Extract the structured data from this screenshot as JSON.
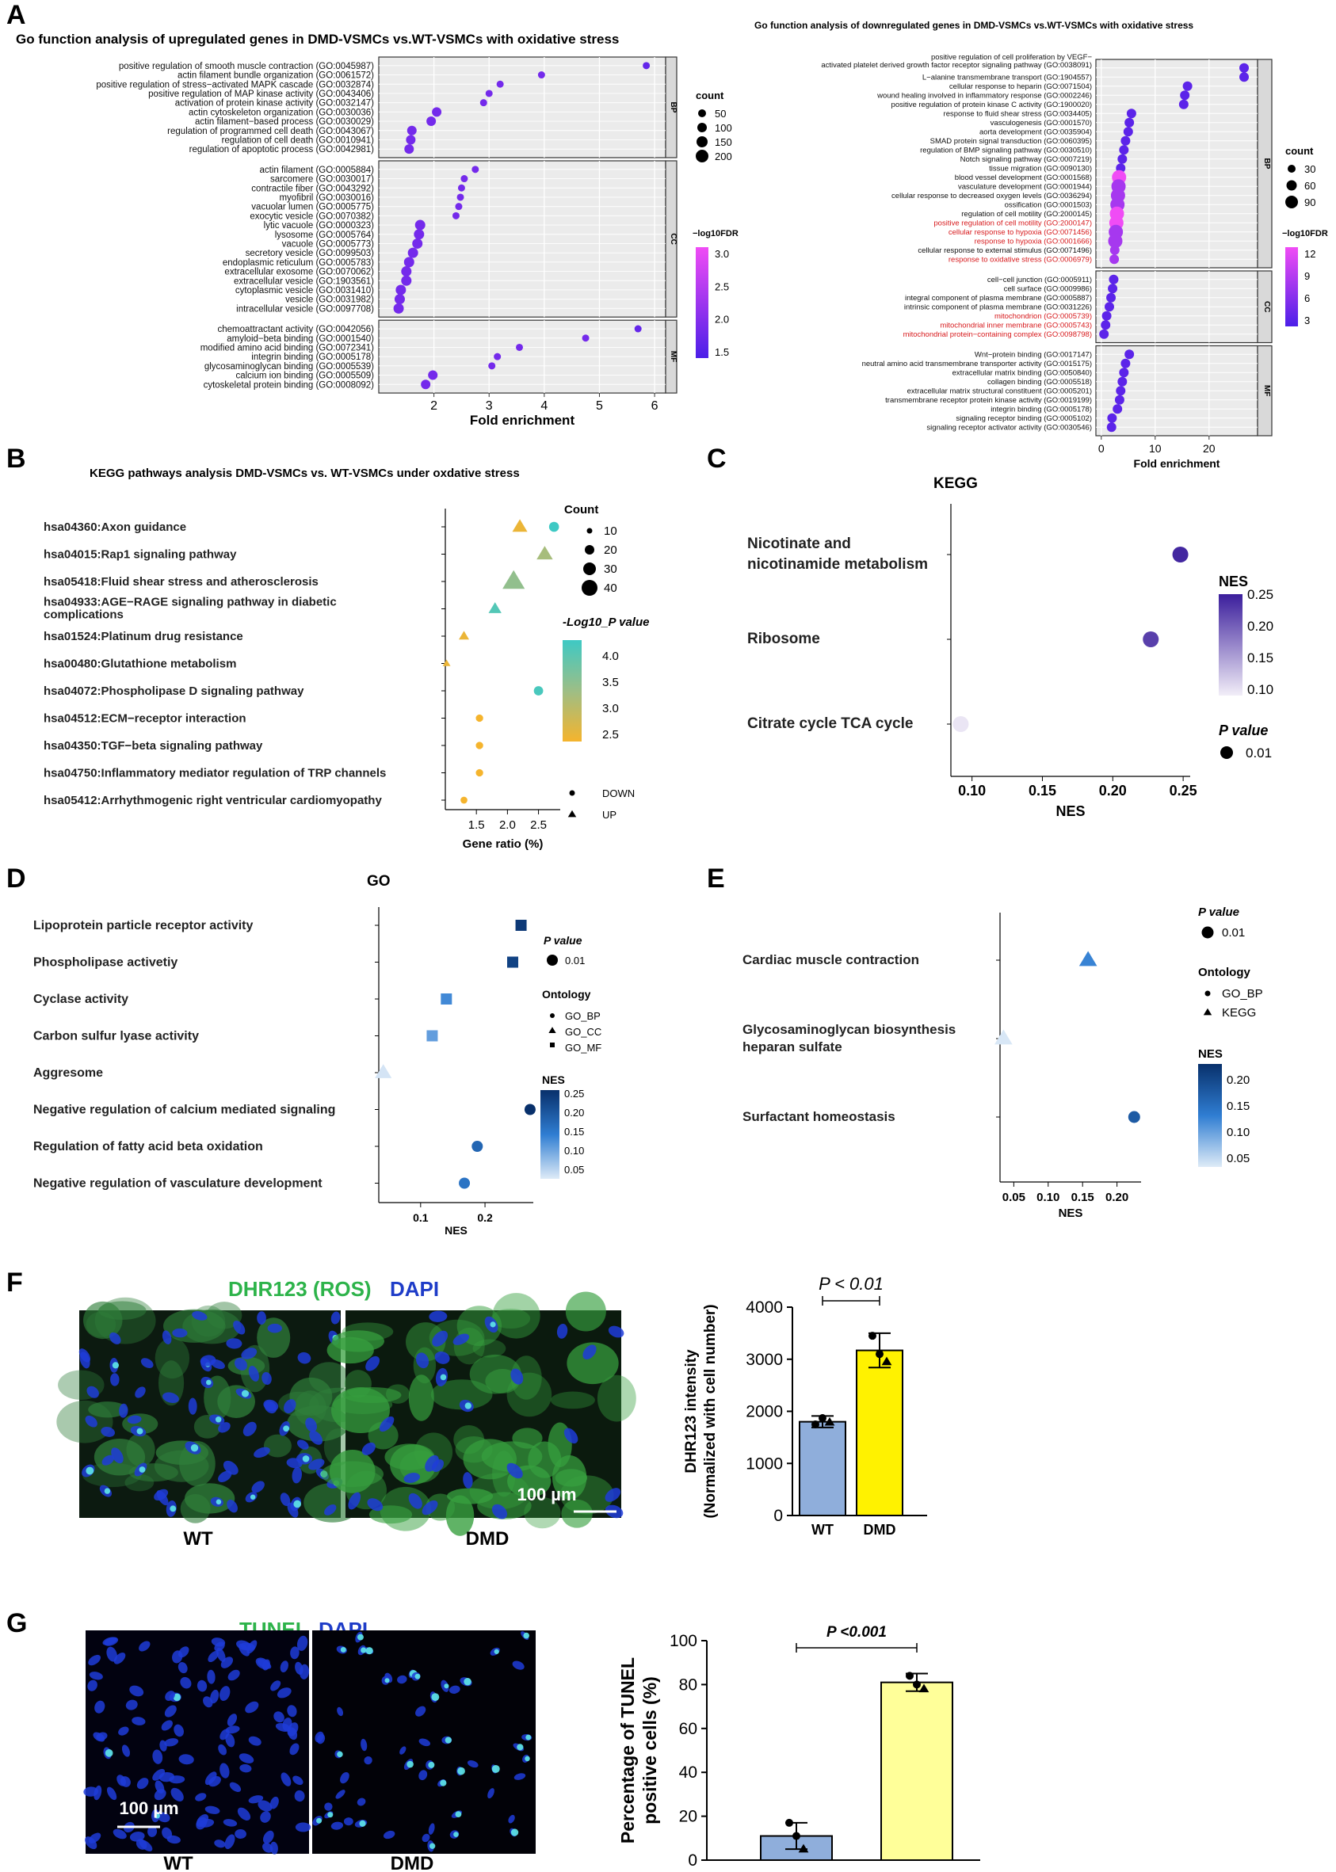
{
  "panels": {
    "A": "A",
    "B": "B",
    "C": "C",
    "D": "D",
    "E": "E",
    "F": "F",
    "G": "G"
  },
  "chart_data": [
    {
      "id": "A_up",
      "type": "scatter",
      "title": "Go function analysis of upregulated genes in DMD-VSMCs vs.WT-VSMCs with oxidative stress",
      "xlabel": "Fold enrichment",
      "xlim": [
        1,
        6.2
      ],
      "xticks": [
        2,
        3,
        4,
        5,
        6
      ],
      "size_legend_title": "count",
      "size_legend": [
        50,
        100,
        150,
        200
      ],
      "color_legend_title": "−log10FDR",
      "color_legend_ticks": [
        "3.0",
        "2.5",
        "2.0",
        "1.5"
      ],
      "groups": [
        {
          "name": "BP",
          "terms": [
            {
              "label": "positive regulation of smooth muscle contraction (GO:0045987)",
              "x": 5.85
            },
            {
              "label": "actin filament bundle organization (GO:0061572)",
              "x": 3.95
            },
            {
              "label": "positive regulation of stress−activated MAPK cascade (GO:0032874)",
              "x": 3.2
            },
            {
              "label": "positive regulation of MAP kinase activity (GO:0043406)",
              "x": 3.0
            },
            {
              "label": "activation of protein kinase activity (GO:0032147)",
              "x": 2.9
            },
            {
              "label": "actin cytoskeleton organization (GO:0030036)",
              "x": 2.05
            },
            {
              "label": "actin filament−based process (GO:0030029)",
              "x": 1.95
            },
            {
              "label": "regulation of programmed cell death (GO:0043067)",
              "x": 1.6
            },
            {
              "label": "regulation of cell death (GO:0010941)",
              "x": 1.58
            },
            {
              "label": "regulation of apoptotic process (GO:0042981)",
              "x": 1.55
            }
          ]
        },
        {
          "name": "CC",
          "terms": [
            {
              "label": "actin filament (GO:0005884)",
              "x": 2.75
            },
            {
              "label": "sarcomere (GO:0030017)",
              "x": 2.55
            },
            {
              "label": "contractile fiber (GO:0043292)",
              "x": 2.5
            },
            {
              "label": "myofibril (GO:0030016)",
              "x": 2.48
            },
            {
              "label": "vacuolar lumen (GO:0005775)",
              "x": 2.45
            },
            {
              "label": "exocytic vesicle (GO:0070382)",
              "x": 2.4
            },
            {
              "label": "lytic vacuole (GO:0000323)",
              "x": 1.75
            },
            {
              "label": "lysosome (GO:0005764)",
              "x": 1.73
            },
            {
              "label": "vacuole (GO:0005773)",
              "x": 1.7
            },
            {
              "label": "secretory vesicle (GO:0099503)",
              "x": 1.62
            },
            {
              "label": "endoplasmic reticulum (GO:0005783)",
              "x": 1.55
            },
            {
              "label": "extracellular exosome (GO:0070062)",
              "x": 1.5
            },
            {
              "label": "extracellular vesicle (GO:1903561)",
              "x": 1.5
            },
            {
              "label": "cytoplasmic vesicle (GO:0031410)",
              "x": 1.4
            },
            {
              "label": "vesicle (GO:0031982)",
              "x": 1.38
            },
            {
              "label": "intracellular vesicle (GO:0097708)",
              "x": 1.36
            }
          ]
        },
        {
          "name": "MF",
          "terms": [
            {
              "label": "chemoattractant activity (GO:0042056)",
              "x": 5.7
            },
            {
              "label": "amyloid−beta binding (GO:0001540)",
              "x": 4.75
            },
            {
              "label": "modified amino acid binding (GO:0072341)",
              "x": 3.55
            },
            {
              "label": "integrin binding (GO:0005178)",
              "x": 3.15
            },
            {
              "label": "glycosaminoglycan binding (GO:0005539)",
              "x": 3.05
            },
            {
              "label": "calcium ion binding (GO:0005509)",
              "x": 1.98
            },
            {
              "label": "cytoskeletal protein binding (GO:0008092)",
              "x": 1.85
            }
          ]
        }
      ]
    },
    {
      "id": "A_down",
      "type": "scatter",
      "title": "Go function analysis of downregulated genes in DMD-VSMCs vs.WT-VSMCs with oxidative stress",
      "xlabel": "Fold enrichment",
      "xlim": [
        -1,
        29
      ],
      "xticks": [
        0,
        10,
        20
      ],
      "size_legend_title": "count",
      "size_legend": [
        30,
        60,
        90
      ],
      "color_legend_title": "−log10FDR",
      "color_legend_ticks": [
        "12",
        "9",
        "6",
        "3"
      ],
      "groups": [
        {
          "name": "BP",
          "terms": [
            {
              "label": "positive regulation of cell proliferation by VEGF−activated platelet derived growth factor receptor signaling pathway (GO:0038091)",
              "x": 26.5
            },
            {
              "label": "L−alanine transmembrane transport (GO:1904557)",
              "x": 26.5
            },
            {
              "label": "cellular response to heparin (GO:0071504)",
              "x": 16.0
            },
            {
              "label": "wound healing involved in inflammatory response (GO:0002246)",
              "x": 15.5
            },
            {
              "label": "positive regulation of protein kinase C activity (GO:1900020)",
              "x": 15.3
            },
            {
              "label": "response to fluid shear stress (GO:0034405)",
              "x": 5.6
            },
            {
              "label": "vasculogenesis (GO:0001570)",
              "x": 5.2
            },
            {
              "label": "aorta development (GO:0035904)",
              "x": 5.0
            },
            {
              "label": "SMAD protein signal transduction (GO:0060395)",
              "x": 4.5
            },
            {
              "label": "regulation of BMP signaling pathway (GO:0030510)",
              "x": 4.2
            },
            {
              "label": "Notch signaling pathway (GO:0007219)",
              "x": 3.9
            },
            {
              "label": "tissue migration (GO:0090130)",
              "x": 3.6
            },
            {
              "label": "blood vessel development (GO:0001568)",
              "x": 3.3
            },
            {
              "label": "vasculature development (GO:0001944)",
              "x": 3.2
            },
            {
              "label": "cellular response to decreased oxygen levels (GO:0036294)",
              "x": 3.1
            },
            {
              "label": "ossification (GO:0001503)",
              "x": 3.0
            },
            {
              "label": "regulation of cell motility (GO:2000145)",
              "x": 2.9
            },
            {
              "label": "positive regulation of cell motility (GO:2000147)",
              "x": 2.8
            },
            {
              "label": "cellular response to hypoxia (GO:0071456)",
              "x": 2.7
            },
            {
              "label": "response to hypoxia (GO:0001666)",
              "x": 2.6
            },
            {
              "label": "cellular response to external stimulus (GO:0071496)",
              "x": 2.5
            },
            {
              "label": "response to oxidative stress (GO:0006979)",
              "x": 2.4
            }
          ]
        },
        {
          "name": "CC",
          "terms": [
            {
              "label": "cell−cell junction (GO:0005911)",
              "x": 2.3
            },
            {
              "label": "cell surface (GO:0009986)",
              "x": 2.1
            },
            {
              "label": "integral component of plasma membrane (GO:0005887)",
              "x": 1.8
            },
            {
              "label": "intrinsic component of plasma membrane (GO:0031226)",
              "x": 1.5
            },
            {
              "label": "mitochondrion (GO:0005739)",
              "x": 1.0
            },
            {
              "label": "mitochondrial inner membrane (GO:0005743)",
              "x": 0.8
            },
            {
              "label": "mitochondrial protein−containing complex (GO:0098798)",
              "x": 0.5
            }
          ]
        },
        {
          "name": "MF",
          "terms": [
            {
              "label": "Wnt−protein binding (GO:0017147)",
              "x": 5.2
            },
            {
              "label": "neutral amino acid transmembrane transporter activity (GO:0015175)",
              "x": 4.5
            },
            {
              "label": "extracellular matrix binding (GO:0050840)",
              "x": 4.2
            },
            {
              "label": "collagen binding (GO:0005518)",
              "x": 3.9
            },
            {
              "label": "extracellular matrix structural constituent (GO:0005201)",
              "x": 3.6
            },
            {
              "label": "transmembrane receptor protein kinase activity (GO:0019199)",
              "x": 3.4
            },
            {
              "label": "integrin binding (GO:0005178)",
              "x": 3.0
            },
            {
              "label": "signaling receptor binding (GO:0005102)",
              "x": 2.0
            },
            {
              "label": "signaling receptor activator activity (GO:0030546)",
              "x": 1.9
            }
          ]
        }
      ]
    },
    {
      "id": "B",
      "type": "scatter",
      "title": "KEGG pathways analysis DMD-VSMCs vs. WT-VSMCs under oxdative stress",
      "xlabel": "Gene ratio (%)",
      "xlim": [
        1.0,
        2.85
      ],
      "xticks": [
        1.5,
        2.0,
        2.5
      ],
      "size_legend_title": "Count",
      "size_legend": [
        10,
        20,
        30,
        40
      ],
      "color_legend_title": "-Log10_P value",
      "color_legend_ticks": [
        "4.0",
        "3.5",
        "3.0",
        "2.5"
      ],
      "shape_legend": [
        "DOWN",
        "UP"
      ],
      "points": [
        {
          "label": "hsa04360:Axon guidance",
          "x": 2.2,
          "count": 15,
          "logp": 2.4,
          "dir": "UP"
        },
        {
          "label": "",
          "x": 2.75,
          "count": 12,
          "logp": 4.1,
          "dir": "DOWN"
        },
        {
          "label": "hsa04015:Rap1 signaling pathway",
          "x": 2.6,
          "count": 18,
          "logp": 3.1,
          "dir": "UP"
        },
        {
          "label": "hsa05418:Fluid shear stress and atherosclerosis",
          "x": 2.1,
          "count": 40,
          "logp": 3.3,
          "dir": "UP"
        },
        {
          "label": "hsa04933:AGE−RAGE signaling pathway in diabetic complications",
          "x": 1.8,
          "count": 10,
          "logp": 3.9,
          "dir": "UP"
        },
        {
          "label": "hsa01524:Platinum drug resistance",
          "x": 1.3,
          "count": 5,
          "logp": 2.4,
          "dir": "UP"
        },
        {
          "label": "hsa00480:Glutathione metabolism",
          "x": 1.02,
          "count": 2,
          "logp": 2.4,
          "dir": "UP"
        },
        {
          "label": "hsa04072:Phospholipase D signaling pathway",
          "x": 2.5,
          "count": 10,
          "logp": 4.0,
          "dir": "DOWN"
        },
        {
          "label": "hsa04512:ECM−receptor interaction",
          "x": 1.55,
          "count": 5,
          "logp": 2.3,
          "dir": "DOWN"
        },
        {
          "label": "hsa04350:TGF−beta signaling pathway",
          "x": 1.55,
          "count": 5,
          "logp": 2.3,
          "dir": "DOWN"
        },
        {
          "label": "hsa04750:Inflammatory mediator regulation of TRP channels",
          "x": 1.55,
          "count": 5,
          "logp": 2.3,
          "dir": "DOWN"
        },
        {
          "label": "hsa05412:Arrhythmogenic right ventricular cardiomyopathy",
          "x": 1.3,
          "count": 4,
          "logp": 2.3,
          "dir": "DOWN"
        }
      ]
    },
    {
      "id": "C",
      "type": "scatter",
      "title": "KEGG",
      "xlabel": "NES",
      "xlim": [
        0.085,
        0.255
      ],
      "xticks": [
        0.1,
        0.15,
        0.2,
        0.25
      ],
      "color_legend_title": "NES",
      "color_legend_ticks": [
        "0.25",
        "0.20",
        "0.15",
        "0.10"
      ],
      "size_legend_title": "P value",
      "size_legend": [
        "0.01"
      ],
      "points": [
        {
          "label": "Nicotinate and nicotinamide metabolism",
          "x": 0.248,
          "nes": 0.248
        },
        {
          "label": "Ribosome",
          "x": 0.227,
          "nes": 0.227
        },
        {
          "label": "Citrate cycle TCA cycle",
          "x": 0.092,
          "nes": 0.092
        }
      ]
    },
    {
      "id": "D",
      "type": "scatter",
      "title": "GO",
      "xlabel": "NES",
      "xlim": [
        0.035,
        0.275
      ],
      "xticks": [
        0.1,
        0.2
      ],
      "size_legend_title": "P value",
      "size_legend": [
        "0.01"
      ],
      "shape_legend_title": "Ontology",
      "shape_legend": [
        "GO_BP",
        "GO_CC",
        "GO_MF"
      ],
      "color_legend_title": "NES",
      "color_legend_ticks": [
        "0.25",
        "0.20",
        "0.15",
        "0.10",
        "0.05"
      ],
      "points": [
        {
          "label": "Lipoprotein particle receptor activity",
          "x": 0.256,
          "nes": 0.256,
          "onto": "GO_MF"
        },
        {
          "label": "Phospholipase activetiy",
          "x": 0.243,
          "nes": 0.243,
          "onto": "GO_MF"
        },
        {
          "label": "Cyclase activity",
          "x": 0.14,
          "nes": 0.14,
          "onto": "GO_MF"
        },
        {
          "label": "Carbon sulfur lyase activity",
          "x": 0.118,
          "nes": 0.118,
          "onto": "GO_MF"
        },
        {
          "label": "Aggresome",
          "x": 0.042,
          "nes": 0.042,
          "onto": "GO_CC"
        },
        {
          "label": "Negative regulation of calcium mediated signaling",
          "x": 0.27,
          "nes": 0.27,
          "onto": "GO_BP"
        },
        {
          "label": "Regulation of fatty acid beta oxidation",
          "x": 0.188,
          "nes": 0.188,
          "onto": "GO_BP"
        },
        {
          "label": "Negative regulation of vasculature development",
          "x": 0.168,
          "nes": 0.168,
          "onto": "GO_BP"
        }
      ]
    },
    {
      "id": "E",
      "type": "scatter",
      "xlabel": "NES",
      "xlim": [
        0.03,
        0.235
      ],
      "xticks": [
        0.05,
        0.1,
        0.15,
        0.2
      ],
      "size_legend_title": "P value",
      "size_legend": [
        "0.01"
      ],
      "shape_legend_title": "Ontology",
      "shape_legend": [
        "GO_BP",
        "KEGG"
      ],
      "color_legend_title": "NES",
      "color_legend_ticks": [
        "0.20",
        "0.15",
        "0.10",
        "0.05"
      ],
      "points": [
        {
          "label": "Cardiac muscle contraction",
          "x": 0.158,
          "nes": 0.158,
          "onto": "KEGG"
        },
        {
          "label": "Glycosaminoglycan biosynthesis heparan sulfate",
          "x": 0.035,
          "nes": 0.035,
          "onto": "KEGG"
        },
        {
          "label": "Surfactant homeostasis",
          "x": 0.225,
          "nes": 0.225,
          "onto": "GO_BP"
        }
      ]
    },
    {
      "id": "F",
      "type": "bar",
      "categories": [
        "WT",
        "DMD"
      ],
      "values": [
        1800,
        3170
      ],
      "errors": [
        110,
        330
      ],
      "points": [
        [
          1750,
          1870,
          1790
        ],
        [
          3450,
          3100,
          2950
        ]
      ],
      "ylabel": "DHR123 intensity (Normalized with cell number)",
      "ylim": [
        0,
        4000
      ],
      "yticks": [
        0,
        1000,
        2000,
        3000,
        4000
      ],
      "annotation": "P < 0.01",
      "colors": [
        "#8FAEDB",
        "#FFF200"
      ]
    },
    {
      "id": "G",
      "type": "bar",
      "categories": [
        "WT",
        "DMD"
      ],
      "values": [
        11,
        81
      ],
      "errors": [
        6,
        4
      ],
      "points": [
        [
          17,
          11,
          5
        ],
        [
          84,
          80,
          78
        ]
      ],
      "ylabel": "Percentage of TUNEL positive cells (%)",
      "ylim": [
        0,
        100
      ],
      "yticks": [
        0,
        20,
        40,
        60,
        80,
        100
      ],
      "annotation": "P <0.001",
      "colors": [
        "#8FAEDB",
        "#FFFF99"
      ]
    }
  ],
  "micrographs": {
    "F": {
      "stain1": "DHR123 (ROS)",
      "stain2": "DAPI",
      "left": "WT",
      "right": "DMD",
      "scale": "100 µm"
    },
    "G": {
      "stain1": "TUNEL",
      "stain2": "DAPI",
      "left": "WT",
      "right": "DMD",
      "scale": "100 µm"
    }
  }
}
